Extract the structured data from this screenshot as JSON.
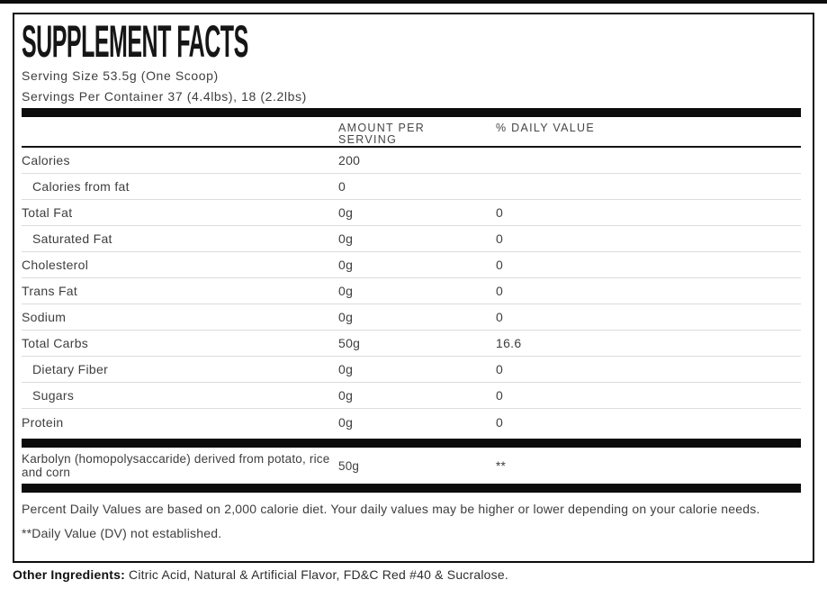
{
  "label": {
    "title": "SUPPLEMENT FACTS",
    "serving_size": "Serving Size 53.5g (One Scoop)",
    "servings_per_container": "Servings Per Container 37 (4.4lbs), 18 (2.2lbs)",
    "columns": {
      "amount": "AMOUNT PER SERVING",
      "daily_value": "% DAILY VALUE"
    },
    "rows": [
      {
        "name": "Calories",
        "amount": "200",
        "dv": ""
      },
      {
        "name": "Calories from fat",
        "amount": "0",
        "dv": ""
      },
      {
        "name": "Total Fat",
        "amount": "0g",
        "dv": "0"
      },
      {
        "name": "Saturated Fat",
        "amount": "0g",
        "dv": "0"
      },
      {
        "name": "Cholesterol",
        "amount": "0g",
        "dv": "0"
      },
      {
        "name": "Trans Fat",
        "amount": "0g",
        "dv": "0"
      },
      {
        "name": "Sodium",
        "amount": "0g",
        "dv": "0"
      },
      {
        "name": "Total Carbs",
        "amount": "50g",
        "dv": "16.6"
      },
      {
        "name": "Dietary Fiber",
        "amount": "0g",
        "dv": "0"
      },
      {
        "name": "Sugars",
        "amount": "0g",
        "dv": "0"
      },
      {
        "name": "Protein",
        "amount": "0g",
        "dv": "0"
      }
    ],
    "ingredient_row": {
      "name": "Karbolyn (homopolysaccaride) derived from potato, rice and corn",
      "amount": "50g",
      "dv": "**"
    },
    "footnote_daily_values": "Percent Daily Values are based on 2,000 calorie diet. Your daily values may be higher or lower depending on your calorie needs.",
    "footnote_dv_not_established": "**Daily Value (DV) not established.",
    "other_ingredients": {
      "label": "Other Ingredients:",
      "text": " Citric Acid, Natural & Artificial Flavor, FD&C Red #40 & Sucralose."
    }
  },
  "colors": {
    "bar": "#0c0c0c",
    "border": "#0c0c0c",
    "text": "#3e3e3e",
    "title_text": "#161616",
    "separator": "#dcdcdc",
    "background": "#ffffff"
  }
}
